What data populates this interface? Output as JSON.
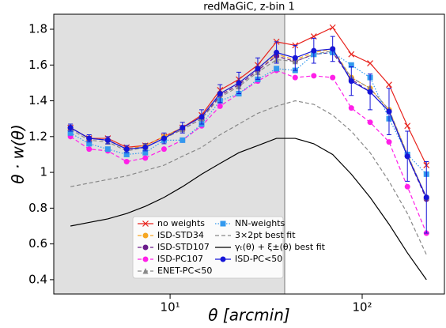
{
  "chart_data": {
    "type": "line",
    "title": "redMaGiC, z-bin 1",
    "xlabel": "θ [arcmin]",
    "ylabel": "θ · w(θ)",
    "x": [
      3.03,
      3.79,
      4.74,
      5.94,
      7.43,
      9.3,
      11.6,
      14.6,
      18.2,
      22.8,
      28.6,
      35.8,
      44.8,
      56.0,
      70.2,
      87.8,
      110,
      138,
      172,
      216
    ],
    "xlog": true,
    "xlim": [
      2.48,
      268
    ],
    "xticks": [
      {
        "value": 10,
        "label": "10¹"
      },
      {
        "value": 100,
        "label": "10²"
      }
    ],
    "ylim": [
      0.32,
      1.884
    ],
    "yticks": [
      0.4,
      0.6,
      0.8,
      1.0,
      1.2,
      1.4,
      1.6,
      1.8
    ],
    "shaded_until": 39.5,
    "legend": "lower center",
    "series": [
      {
        "name": "no weights",
        "color": "#e8231d",
        "marker": "x",
        "dash": "solid",
        "values": [
          1.25,
          1.19,
          1.19,
          1.14,
          1.15,
          1.2,
          1.25,
          1.32,
          1.46,
          1.52,
          1.6,
          1.73,
          1.71,
          1.76,
          1.81,
          1.66,
          1.61,
          1.49,
          1.26,
          1.04
        ]
      },
      {
        "name": "ISD-STD34",
        "color": "#f5a623",
        "marker": "circle",
        "dash": "dashed",
        "values": [
          1.25,
          1.19,
          1.18,
          1.13,
          1.15,
          1.2,
          1.25,
          1.31,
          1.44,
          1.5,
          1.58,
          1.66,
          1.63,
          1.67,
          1.69,
          1.53,
          1.47,
          1.35,
          1.1,
          0.86
        ]
      },
      {
        "name": "ISD-STD107",
        "color": "#6a1b8a",
        "marker": "circle",
        "dash": "dashed",
        "values": [
          1.25,
          1.19,
          1.18,
          1.13,
          1.14,
          1.19,
          1.24,
          1.3,
          1.43,
          1.49,
          1.57,
          1.65,
          1.62,
          1.66,
          1.67,
          1.52,
          1.45,
          1.34,
          1.09,
          0.85
        ]
      },
      {
        "name": "ISD-PC107",
        "color": "#ff1fe8",
        "marker": "circle",
        "dash": "dashed",
        "values": [
          1.2,
          1.13,
          1.12,
          1.06,
          1.08,
          1.13,
          1.18,
          1.26,
          1.37,
          1.44,
          1.51,
          1.57,
          1.53,
          1.54,
          1.53,
          1.36,
          1.28,
          1.17,
          0.92,
          0.66
        ]
      },
      {
        "name": "ENET-PC<50",
        "color": "#8a8a8a",
        "marker": "triangle",
        "dash": "dashed",
        "values": [
          1.24,
          1.18,
          1.17,
          1.12,
          1.14,
          1.19,
          1.24,
          1.3,
          1.42,
          1.48,
          1.56,
          1.63,
          1.62,
          1.66,
          1.68,
          1.53,
          1.47,
          1.35,
          1.1,
          0.86
        ]
      },
      {
        "name": "NN-weights",
        "color": "#3399ee",
        "marker": "square",
        "dash": "dotted",
        "values": [
          1.22,
          1.16,
          1.13,
          1.1,
          1.11,
          1.18,
          1.18,
          1.27,
          1.4,
          1.44,
          1.52,
          1.58,
          1.57,
          1.66,
          1.67,
          1.6,
          1.53,
          1.3,
          1.1,
          0.99
        ]
      },
      {
        "name": "3×2pt best fit",
        "color": "#888888",
        "marker": "none",
        "dash": "dashed",
        "values": [
          0.92,
          0.94,
          0.96,
          0.98,
          1.01,
          1.04,
          1.09,
          1.14,
          1.21,
          1.27,
          1.33,
          1.37,
          1.4,
          1.38,
          1.32,
          1.23,
          1.11,
          0.95,
          0.77,
          0.54
        ]
      },
      {
        "name": "γₜ(θ) + ξ±(θ) best fit",
        "color": "#000000",
        "marker": "none",
        "dash": "solid",
        "values": [
          0.7,
          0.72,
          0.74,
          0.77,
          0.81,
          0.86,
          0.92,
          0.99,
          1.05,
          1.11,
          1.15,
          1.19,
          1.19,
          1.16,
          1.1,
          0.99,
          0.86,
          0.71,
          0.55,
          0.4
        ]
      },
      {
        "name": "ISD-PC<50",
        "color": "#1515d8",
        "marker": "circle",
        "dash": "solid",
        "values": [
          1.25,
          1.19,
          1.18,
          1.13,
          1.14,
          1.19,
          1.25,
          1.31,
          1.44,
          1.5,
          1.58,
          1.67,
          1.64,
          1.68,
          1.69,
          1.51,
          1.45,
          1.34,
          1.09,
          0.86
        ],
        "errors": [
          0.02,
          0.02,
          0.02,
          0.02,
          0.02,
          0.03,
          0.03,
          0.04,
          0.05,
          0.06,
          0.06,
          0.06,
          0.07,
          0.07,
          0.07,
          0.08,
          0.1,
          0.13,
          0.14,
          0.2
        ]
      }
    ]
  }
}
